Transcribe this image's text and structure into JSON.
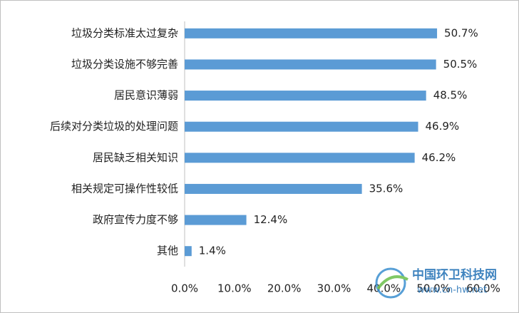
{
  "chart_data": {
    "type": "bar",
    "orientation": "horizontal",
    "categories": [
      "垃圾分类标准太过复杂",
      "垃圾分类设施不够完善",
      "居民意识薄弱",
      "后续对分类垃圾的处理问题",
      "居民缺乏相关知识",
      "相关规定可操作性较低",
      "政府宣传力度不够",
      "其他"
    ],
    "values": [
      50.7,
      50.5,
      48.5,
      46.9,
      46.2,
      35.6,
      12.4,
      1.4
    ],
    "value_labels": [
      "50.7%",
      "50.5%",
      "48.5%",
      "46.9%",
      "46.2%",
      "35.6%",
      "12.4%",
      "1.4%"
    ],
    "color": "#5b9bd5",
    "xlim": [
      0,
      60
    ],
    "xticks": [
      {
        "value": 0,
        "label": "0.0%"
      },
      {
        "value": 10,
        "label": "10.0%"
      },
      {
        "value": 20,
        "label": "20.0%"
      },
      {
        "value": 30,
        "label": "30.0%"
      },
      {
        "value": 40,
        "label": "40.0%"
      },
      {
        "value": 50,
        "label": "50.0%"
      },
      {
        "value": 60,
        "label": "60.0%"
      }
    ],
    "grid": false
  },
  "watermark": {
    "title": "中国环卫科技网",
    "url": "www.cn-hw.net"
  }
}
